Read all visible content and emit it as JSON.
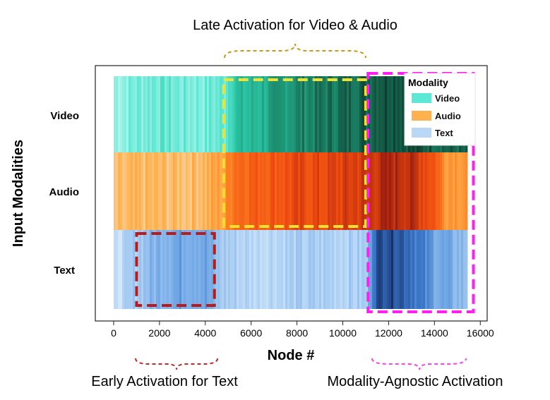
{
  "chart_data": {
    "type": "heatmap",
    "title": "",
    "xlabel": "Node #",
    "ylabel": "Input Modalities",
    "xlim": [
      -800,
      16300
    ],
    "x_ticks": [
      0,
      2000,
      4000,
      6000,
      8000,
      10000,
      12000,
      14000,
      16000
    ],
    "x_tick_labels": [
      "0",
      "2000",
      "4000",
      "6000",
      "8000",
      "10000",
      "12000",
      "14000",
      "16000"
    ],
    "node_range": [
      0,
      15400
    ],
    "rows": [
      "Video",
      "Audio",
      "Text"
    ],
    "legend": {
      "title": "Modality",
      "placement": "top-right",
      "entries": [
        {
          "label": "Video",
          "color": "#5ce8d4"
        },
        {
          "label": "Audio",
          "color": "#fdb24f"
        },
        {
          "label": "Text",
          "color": "#bad8f6"
        }
      ]
    },
    "series": [
      {
        "modality": "Video",
        "activation_profile": [
          {
            "x": 0,
            "value": 0.15
          },
          {
            "x": 1000,
            "value": 0.2
          },
          {
            "x": 2000,
            "value": 0.25
          },
          {
            "x": 3000,
            "value": 0.2
          },
          {
            "x": 4000,
            "value": 0.2
          },
          {
            "x": 4800,
            "value": 0.25
          },
          {
            "x": 5200,
            "value": 0.5
          },
          {
            "x": 6000,
            "value": 0.55
          },
          {
            "x": 7000,
            "value": 0.65
          },
          {
            "x": 8000,
            "value": 0.75
          },
          {
            "x": 9000,
            "value": 0.8
          },
          {
            "x": 10000,
            "value": 0.85
          },
          {
            "x": 11000,
            "value": 0.9
          },
          {
            "x": 12000,
            "value": 0.97
          },
          {
            "x": 13000,
            "value": 0.95
          },
          {
            "x": 14000,
            "value": 0.9
          },
          {
            "x": 15400,
            "value": 0.85
          }
        ]
      },
      {
        "modality": "Audio",
        "activation_profile": [
          {
            "x": 0,
            "value": 0.15
          },
          {
            "x": 1000,
            "value": 0.2
          },
          {
            "x": 2000,
            "value": 0.2
          },
          {
            "x": 3000,
            "value": 0.2
          },
          {
            "x": 4000,
            "value": 0.25
          },
          {
            "x": 4800,
            "value": 0.35
          },
          {
            "x": 5200,
            "value": 0.6
          },
          {
            "x": 6000,
            "value": 0.65
          },
          {
            "x": 7000,
            "value": 0.7
          },
          {
            "x": 8000,
            "value": 0.75
          },
          {
            "x": 9000,
            "value": 0.75
          },
          {
            "x": 10000,
            "value": 0.8
          },
          {
            "x": 11000,
            "value": 0.85
          },
          {
            "x": 12000,
            "value": 0.95
          },
          {
            "x": 13000,
            "value": 0.9
          },
          {
            "x": 14000,
            "value": 0.7
          },
          {
            "x": 14400,
            "value": 0.4
          },
          {
            "x": 15400,
            "value": 0.4
          }
        ]
      },
      {
        "modality": "Text",
        "activation_profile": [
          {
            "x": 0,
            "value": 0.15
          },
          {
            "x": 1000,
            "value": 0.35
          },
          {
            "x": 2000,
            "value": 0.5
          },
          {
            "x": 3000,
            "value": 0.55
          },
          {
            "x": 4000,
            "value": 0.55
          },
          {
            "x": 4500,
            "value": 0.35
          },
          {
            "x": 6000,
            "value": 0.25
          },
          {
            "x": 8000,
            "value": 0.3
          },
          {
            "x": 10000,
            "value": 0.3
          },
          {
            "x": 11000,
            "value": 0.3
          },
          {
            "x": 11300,
            "value": 0.85
          },
          {
            "x": 12000,
            "value": 0.95
          },
          {
            "x": 13000,
            "value": 0.8
          },
          {
            "x": 14000,
            "value": 0.55
          },
          {
            "x": 15400,
            "value": 0.4
          }
        ]
      }
    ],
    "highlights": [
      {
        "label": "Early Activation for Text",
        "rows": [
          "Text"
        ],
        "x_range": [
          1000,
          4400
        ],
        "color": "#b71c1c"
      },
      {
        "label": "Late Activation for Video & Audio",
        "rows": [
          "Video",
          "Audio"
        ],
        "x_range": [
          4800,
          11000
        ],
        "color": "#f2e22e"
      },
      {
        "label": "Modality-Agnostic Activation",
        "rows": [
          "Video",
          "Audio",
          "Text"
        ],
        "x_range": [
          11100,
          15700
        ],
        "color": "#ff1ff2"
      }
    ],
    "brace_colors": {
      "early": "#c62828",
      "late": "#c39b1c",
      "agnostic": "#ff3ff0"
    }
  }
}
